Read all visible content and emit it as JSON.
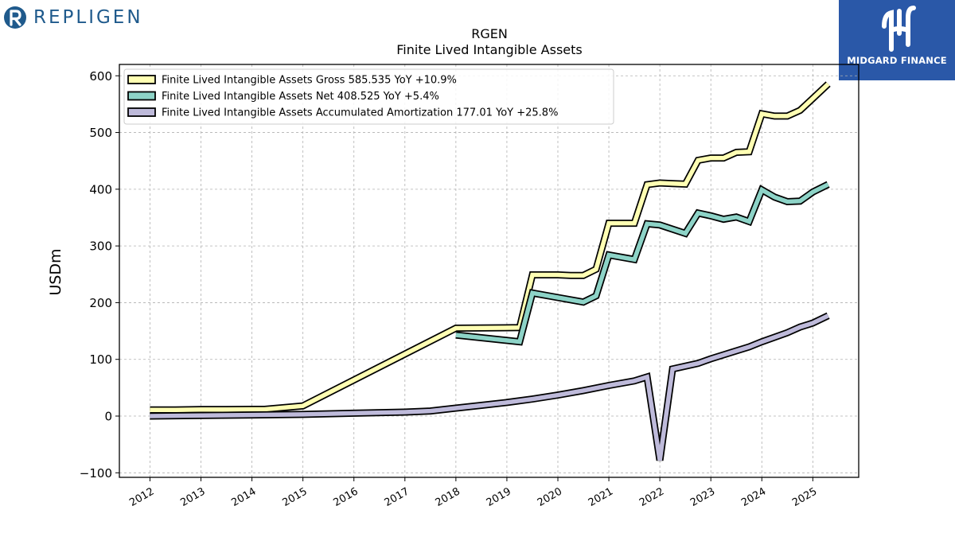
{
  "brand": {
    "name": "REPLIGEN",
    "color": "#1f5a8c"
  },
  "badge": {
    "text": "MIDGARD FINANCE",
    "color": "#2a58a8"
  },
  "chart_data": {
    "type": "line",
    "title": "RGEN",
    "subtitle": "Finite Lived Intangible Assets",
    "xlabel": "",
    "ylabel": "USDm",
    "xlim": [
      2011.4,
      2025.9
    ],
    "ylim": [
      -108,
      620
    ],
    "x_ticks": [
      2012,
      2013,
      2014,
      2015,
      2016,
      2017,
      2018,
      2019,
      2020,
      2021,
      2022,
      2023,
      2024,
      2025
    ],
    "y_ticks": [
      -100,
      0,
      100,
      200,
      300,
      400,
      500,
      600
    ],
    "y_tick_labels": [
      "−100",
      "0",
      "100",
      "200",
      "300",
      "400",
      "500",
      "600"
    ],
    "grid": true,
    "legend_position": "top-left",
    "series": [
      {
        "name": "Finite Lived Intangible Assets Gross",
        "legend": "Finite Lived Intangible Assets Gross  585.535 YoY +10.9%",
        "color": "#ffffb3",
        "points": [
          [
            2012.0,
            11
          ],
          [
            2012.5,
            11
          ],
          [
            2013.0,
            11.5
          ],
          [
            2013.5,
            11.5
          ],
          [
            2014.0,
            12
          ],
          [
            2014.25,
            12
          ],
          [
            2015.0,
            18
          ],
          [
            2018.0,
            155
          ],
          [
            2019.25,
            156
          ],
          [
            2019.5,
            249
          ],
          [
            2019.75,
            249
          ],
          [
            2020.0,
            249
          ],
          [
            2020.25,
            248
          ],
          [
            2020.5,
            248
          ],
          [
            2020.75,
            259
          ],
          [
            2021.0,
            340
          ],
          [
            2021.25,
            340
          ],
          [
            2021.5,
            340
          ],
          [
            2021.75,
            408
          ],
          [
            2022.0,
            411
          ],
          [
            2022.25,
            410
          ],
          [
            2022.5,
            409
          ],
          [
            2022.75,
            451
          ],
          [
            2023.0,
            455
          ],
          [
            2023.25,
            455
          ],
          [
            2023.5,
            465
          ],
          [
            2023.75,
            466
          ],
          [
            2024.0,
            533
          ],
          [
            2024.25,
            529
          ],
          [
            2024.5,
            529
          ],
          [
            2024.75,
            539
          ],
          [
            2025.0,
            560
          ],
          [
            2025.3,
            585.535
          ]
        ]
      },
      {
        "name": "Finite Lived Intangible Assets Net",
        "legend": "Finite Lived Intangible Assets Net  408.525 YoY +5.4%",
        "color": "#8dd3c7",
        "points": [
          [
            2018.0,
            143
          ],
          [
            2019.25,
            131
          ],
          [
            2019.5,
            217
          ],
          [
            2020.0,
            209
          ],
          [
            2020.5,
            201
          ],
          [
            2020.75,
            212
          ],
          [
            2021.0,
            284
          ],
          [
            2021.5,
            276
          ],
          [
            2021.75,
            339
          ],
          [
            2022.0,
            337
          ],
          [
            2022.5,
            322
          ],
          [
            2022.75,
            358
          ],
          [
            2023.0,
            353
          ],
          [
            2023.25,
            347
          ],
          [
            2023.5,
            351
          ],
          [
            2023.75,
            343
          ],
          [
            2024.0,
            399
          ],
          [
            2024.25,
            386
          ],
          [
            2024.5,
            378
          ],
          [
            2024.75,
            379
          ],
          [
            2025.0,
            395
          ],
          [
            2025.3,
            408.525
          ]
        ]
      },
      {
        "name": "Finite Lived Intangible Assets Accumulated Amortization",
        "legend": "Finite Lived Intangible Assets Accumulated Amortization  177.01 YoY +25.8%",
        "color": "#bebada",
        "points": [
          [
            2012.0,
            0
          ],
          [
            2013.0,
            1
          ],
          [
            2014.0,
            2
          ],
          [
            2015.0,
            3
          ],
          [
            2016.0,
            5
          ],
          [
            2017.0,
            7
          ],
          [
            2017.5,
            9
          ],
          [
            2018.0,
            14
          ],
          [
            2018.5,
            19
          ],
          [
            2019.0,
            24
          ],
          [
            2019.5,
            30
          ],
          [
            2020.0,
            37
          ],
          [
            2020.5,
            45
          ],
          [
            2021.0,
            54
          ],
          [
            2021.5,
            62
          ],
          [
            2021.75,
            69
          ],
          [
            2022.0,
            -78
          ],
          [
            2022.25,
            83
          ],
          [
            2022.75,
            93
          ],
          [
            2023.0,
            101
          ],
          [
            2023.5,
            115
          ],
          [
            2023.75,
            122
          ],
          [
            2024.0,
            131
          ],
          [
            2024.5,
            147
          ],
          [
            2024.75,
            157
          ],
          [
            2025.0,
            164
          ],
          [
            2025.3,
            177.01
          ]
        ]
      }
    ]
  }
}
